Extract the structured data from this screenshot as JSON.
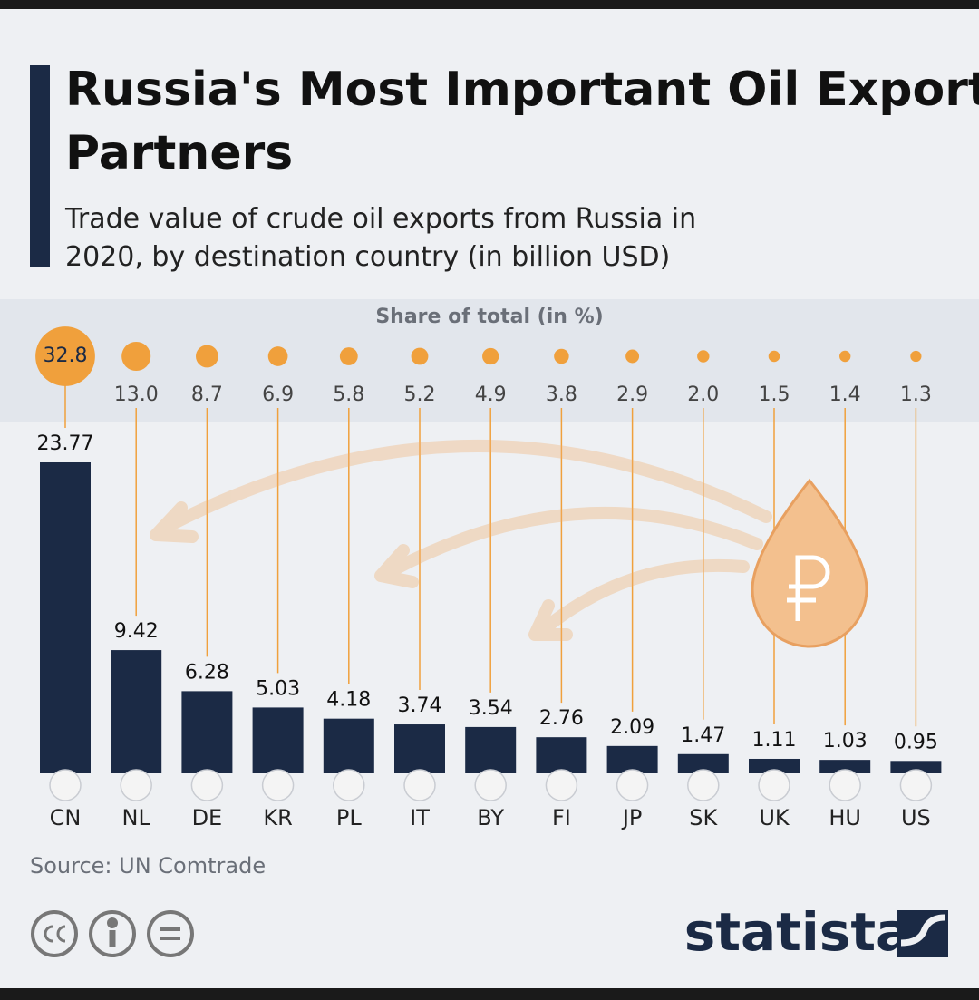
{
  "chart_data": {
    "type": "bar",
    "title": "Russia's Most Important Oil Export Partners",
    "subtitle": "Trade value of crude oil exports from Russia in 2020, by destination country (in billion USD)",
    "categories": [
      "CN",
      "NL",
      "DE",
      "KR",
      "PL",
      "IT",
      "BY",
      "FI",
      "JP",
      "SK",
      "UK",
      "HU",
      "US"
    ],
    "values": [
      23.77,
      9.42,
      6.28,
      5.03,
      4.18,
      3.74,
      3.54,
      2.76,
      2.09,
      1.47,
      1.11,
      1.03,
      0.95
    ],
    "color": "#1b2a45",
    "share": {
      "title": "Share of total (in %)",
      "color": "#f0a03c",
      "values": [
        32.8,
        13.0,
        8.7,
        6.9,
        5.8,
        5.2,
        4.9,
        3.8,
        2.9,
        2.0,
        1.5,
        1.4,
        1.3
      ],
      "value_labels": [
        "32.8",
        "13.0",
        "8.7",
        "6.9",
        "5.8",
        "5.2",
        "4.9",
        "3.8",
        "2.9",
        "2.0",
        "1.5",
        "1.4",
        "1.3"
      ]
    },
    "source": "Source: UN Comtrade",
    "brand": "statista"
  }
}
